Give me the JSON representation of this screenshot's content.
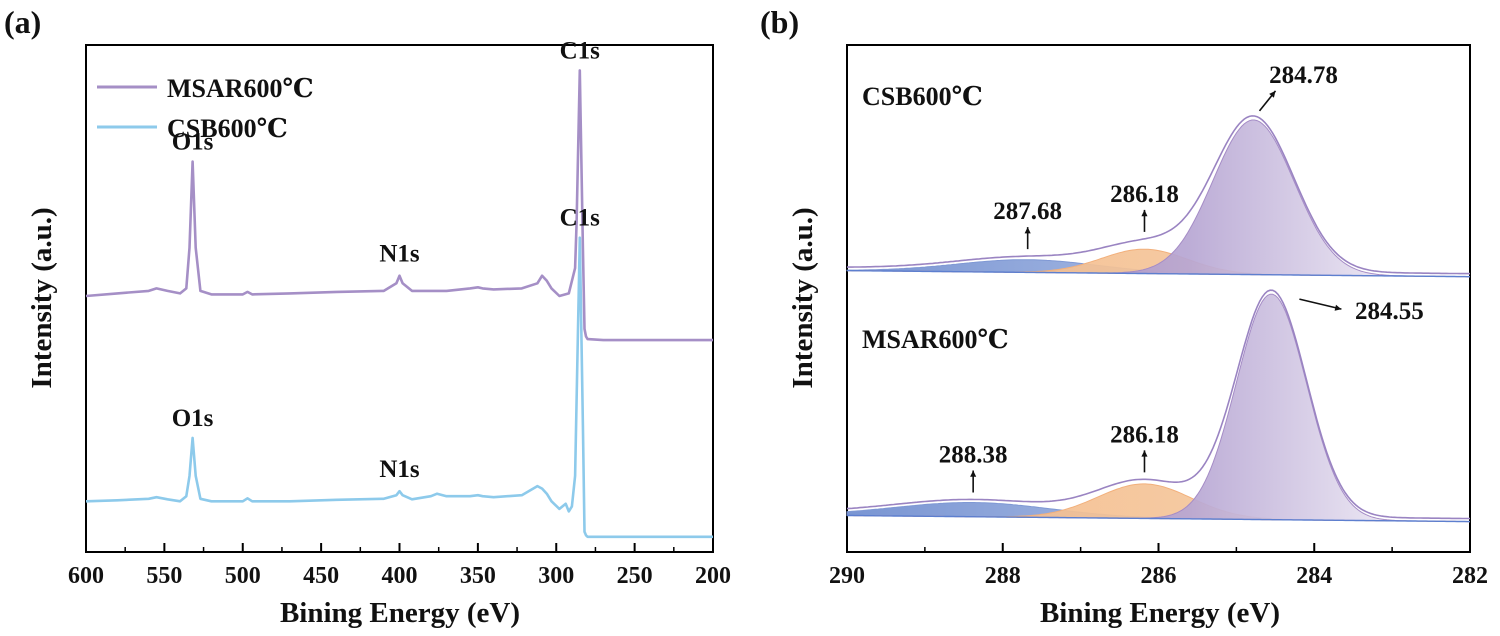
{
  "chart_data": [
    {
      "panel_label": "(a)",
      "type": "line",
      "title": "",
      "xlabel": "Bining Energy (eV)",
      "ylabel": "Intensity (a.u.)",
      "xlim": [
        600,
        200
      ],
      "ylim": [
        0,
        1
      ],
      "x_ticks": [
        600,
        550,
        500,
        450,
        400,
        350,
        300,
        250,
        200
      ],
      "y_ticks": [],
      "grid": false,
      "legend": {
        "placement": "top-left",
        "entries": [
          {
            "label": "MSAR600℃",
            "color": "#a58fc6"
          },
          {
            "label": "CSB600℃",
            "color": "#8dcaeb"
          }
        ]
      },
      "series": [
        {
          "name": "MSAR600℃",
          "color": "#a58fc6",
          "x": [
            600,
            580,
            560,
            555,
            548,
            540,
            536,
            534,
            532,
            530,
            527,
            520,
            500,
            497,
            494,
            470,
            440,
            410,
            402,
            400,
            398,
            392,
            370,
            355,
            350,
            347,
            340,
            322,
            312,
            309,
            306,
            303,
            298,
            292,
            288,
            287,
            285,
            283,
            282,
            281,
            280,
            270,
            200
          ],
          "y": [
            0.505,
            0.51,
            0.515,
            0.52,
            0.515,
            0.51,
            0.52,
            0.6,
            0.77,
            0.6,
            0.515,
            0.508,
            0.508,
            0.513,
            0.508,
            0.51,
            0.513,
            0.515,
            0.53,
            0.545,
            0.53,
            0.515,
            0.515,
            0.52,
            0.522,
            0.52,
            0.518,
            0.52,
            0.53,
            0.545,
            0.535,
            0.52,
            0.505,
            0.51,
            0.56,
            0.65,
            0.95,
            0.6,
            0.44,
            0.425,
            0.42,
            0.418,
            0.418
          ]
        },
        {
          "name": "CSB600℃",
          "color": "#8dcaeb",
          "x": [
            600,
            580,
            560,
            555,
            548,
            540,
            536,
            534,
            532,
            530,
            527,
            520,
            500,
            497,
            494,
            470,
            440,
            410,
            402,
            400,
            398,
            392,
            380,
            376,
            370,
            355,
            350,
            347,
            340,
            322,
            312,
            309,
            306,
            303,
            298,
            294,
            292,
            290,
            288,
            287,
            285,
            283,
            282,
            281,
            280,
            270,
            200
          ],
          "y": [
            0.1,
            0.102,
            0.105,
            0.108,
            0.104,
            0.1,
            0.11,
            0.15,
            0.225,
            0.15,
            0.105,
            0.1,
            0.1,
            0.106,
            0.1,
            0.1,
            0.103,
            0.105,
            0.112,
            0.12,
            0.112,
            0.104,
            0.11,
            0.115,
            0.11,
            0.11,
            0.112,
            0.11,
            0.108,
            0.112,
            0.13,
            0.125,
            0.115,
            0.1,
            0.085,
            0.095,
            0.08,
            0.09,
            0.15,
            0.3,
            0.62,
            0.25,
            0.04,
            0.033,
            0.03,
            0.03,
            0.03
          ]
        }
      ],
      "annotations": [
        {
          "text": "C1s",
          "series": "MSAR600℃",
          "x": 285
        },
        {
          "text": "O1s",
          "series": "MSAR600℃",
          "x": 532
        },
        {
          "text": "N1s",
          "series": "MSAR600℃",
          "x": 400
        },
        {
          "text": "C1s",
          "series": "CSB600℃",
          "x": 285
        },
        {
          "text": "O1s",
          "series": "CSB600℃",
          "x": 532
        },
        {
          "text": "N1s",
          "series": "CSB600℃",
          "x": 400
        }
      ]
    },
    {
      "panel_label": "(b)",
      "type": "area",
      "title": "",
      "xlabel": "Bining Energy (eV)",
      "ylabel": "Intensity (a.u.)",
      "xlim": [
        290,
        282
      ],
      "ylim": [
        0,
        1
      ],
      "x_ticks": [
        290,
        288,
        286,
        284,
        282
      ],
      "y_ticks": [],
      "grid": false,
      "samples": [
        {
          "name": "CSB600℃",
          "baseline": 0.555,
          "components": [
            {
              "center": 287.68,
              "amplitude": 0.025,
              "width": 0.9,
              "color": "#7f98d4"
            },
            {
              "center": 286.18,
              "amplitude": 0.048,
              "width": 0.55,
              "color": "#f2b07c"
            },
            {
              "center": 284.78,
              "amplitude": 0.305,
              "width": 0.52,
              "color": "#a58cc6"
            }
          ],
          "peak_labels": [
            "287.68",
            "286.18",
            "284.78"
          ]
        },
        {
          "name": "MSAR600℃",
          "baseline": 0.072,
          "components": [
            {
              "center": 288.38,
              "amplitude": 0.028,
              "width": 1.0,
              "color": "#7f98d4"
            },
            {
              "center": 286.18,
              "amplitude": 0.068,
              "width": 0.6,
              "color": "#f2b07c"
            },
            {
              "center": 284.55,
              "amplitude": 0.445,
              "width": 0.45,
              "color": "#a58cc6"
            }
          ],
          "peak_labels": [
            "288.38",
            "286.18",
            "284.55"
          ]
        }
      ]
    }
  ]
}
